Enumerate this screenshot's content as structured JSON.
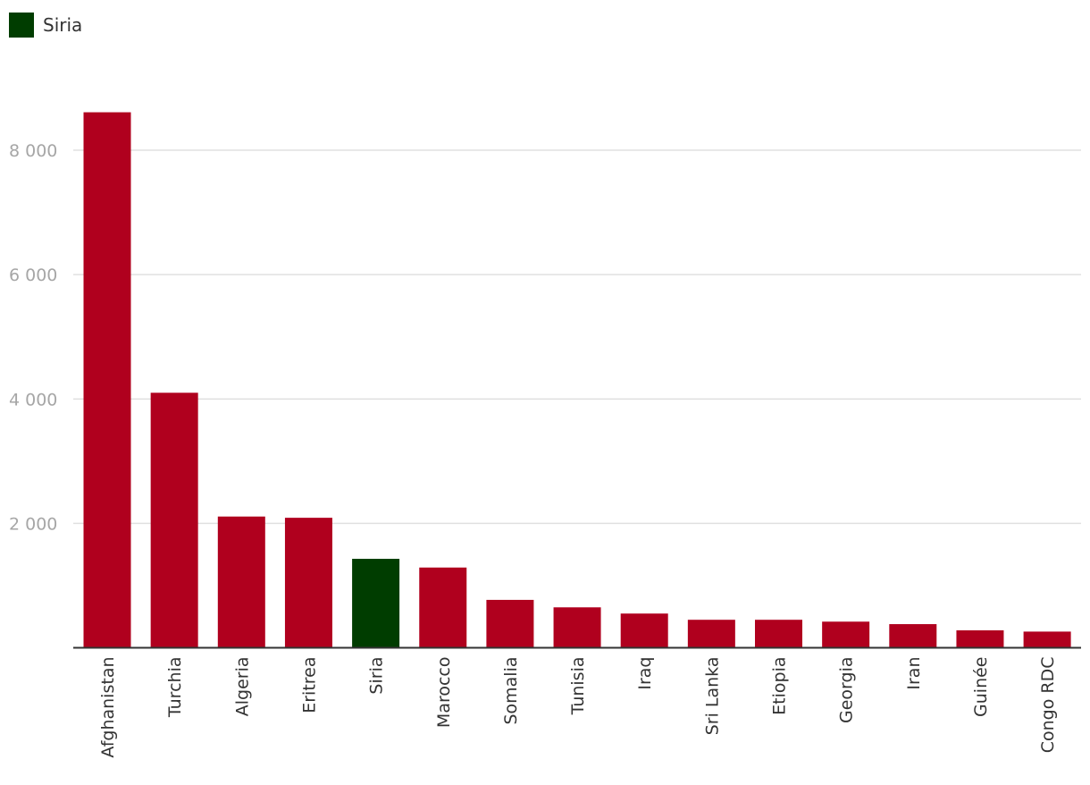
{
  "legend": {
    "label": "Siria",
    "color": "#003d00"
  },
  "colors": {
    "default_bar": "#b0001e",
    "highlight_bar": "#003d00",
    "gridline": "#e0e0e0",
    "axis_line": "#333333",
    "tick_text": "#a6a6a6",
    "category_text": "#333333"
  },
  "chart_data": {
    "type": "bar",
    "title": "",
    "xlabel": "",
    "ylabel": "",
    "ylim": [
      0,
      8800
    ],
    "yticks": [
      2000,
      4000,
      6000,
      8000
    ],
    "ytick_labels": [
      "2 000",
      "4 000",
      "6 000",
      "8 000"
    ],
    "grid": true,
    "legend_position": "top-left",
    "highlight": "Siria",
    "categories": [
      "Afghanistan",
      "Turchia",
      "Algeria",
      "Eritrea",
      "Siria",
      "Marocco",
      "Somalia",
      "Tunisia",
      "Iraq",
      "Sri Lanka",
      "Etiopia",
      "Georgia",
      "Iran",
      "Guinée",
      "Congo RDC"
    ],
    "values": [
      8610,
      4100,
      2110,
      2090,
      1430,
      1290,
      770,
      650,
      550,
      450,
      450,
      420,
      380,
      280,
      260
    ]
  }
}
